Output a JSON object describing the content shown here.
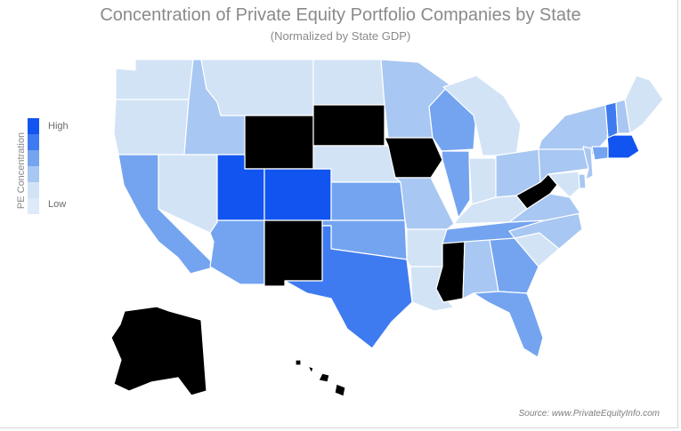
{
  "title": "Concentration of Private Equity Portfolio Companies by State",
  "subtitle": "(Normalized by State GDP)",
  "legend": {
    "title": "PE Concentration",
    "high_label": "High",
    "low_label": "Low",
    "scale_colors": [
      "#1254f0",
      "#3f7bf0",
      "#74a4f0",
      "#a8c7f2",
      "#d2e3f6"
    ]
  },
  "source": "Source: www.PrivateEquityInfo.com",
  "state_levels": {
    "WA": 4,
    "OR": 4,
    "ID": 3,
    "MT": 4,
    "WY": 5,
    "ND": 4,
    "SD": 5,
    "NE": 4,
    "KS": 2,
    "OK": 2,
    "TX": 1,
    "NM": 5,
    "AZ": 2,
    "CO": 0,
    "UT": 0,
    "NV": 4,
    "CA": 2,
    "MN": 3,
    "IA": 5,
    "MO": 3,
    "AR": 4,
    "LA": 4,
    "WI": 2,
    "IL": 2,
    "MI": 4,
    "IN": 4,
    "OH": 3,
    "KY": 4,
    "TN": 2,
    "MS": 5,
    "AL": 3,
    "GA": 2,
    "FL": 2,
    "SC": 4,
    "NC": 3,
    "VA": 3,
    "WV": 5,
    "PA": 3,
    "NY": 3,
    "ME": 4,
    "VT": 1,
    "NH": 3,
    "MA": 0,
    "CT": 2,
    "NJ": 3,
    "DE": 3,
    "MD": 4,
    "AK": 5,
    "HI": 5
  }
}
